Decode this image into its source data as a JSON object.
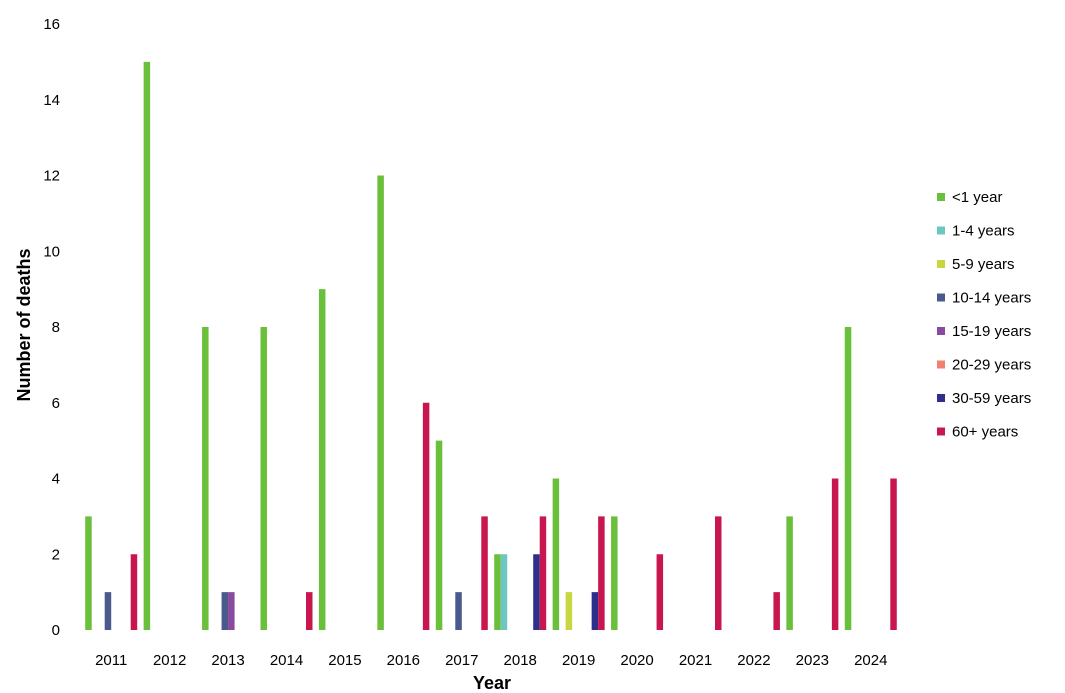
{
  "chart_data": {
    "type": "bar",
    "xlabel": "Year",
    "ylabel": "Number of deaths",
    "ylim": [
      0,
      16
    ],
    "yticks": [
      0,
      2,
      4,
      6,
      8,
      10,
      12,
      14,
      16
    ],
    "grid": false,
    "legend_position": "right",
    "categories": [
      "2011",
      "2012",
      "2013",
      "2014",
      "2015",
      "2016",
      "2017",
      "2018",
      "2019",
      "2020",
      "2021",
      "2022",
      "2023",
      "2024"
    ],
    "series": [
      {
        "name": "<1 year",
        "color": "#6abf3b",
        "values": [
          3,
          15,
          8,
          8,
          9,
          12,
          5,
          2,
          4,
          3,
          0,
          0,
          3,
          8
        ]
      },
      {
        "name": "1-4 years",
        "color": "#6ec6c0",
        "values": [
          0,
          0,
          0,
          0,
          0,
          0,
          0,
          2,
          0,
          0,
          0,
          0,
          0,
          0
        ]
      },
      {
        "name": "5-9 years",
        "color": "#c8d640",
        "values": [
          0,
          0,
          0,
          0,
          0,
          0,
          0,
          0,
          1,
          0,
          0,
          0,
          0,
          0
        ]
      },
      {
        "name": "10-14 years",
        "color": "#4a5a8c",
        "values": [
          1,
          0,
          1,
          0,
          0,
          0,
          1,
          0,
          0,
          0,
          0,
          0,
          0,
          0
        ]
      },
      {
        "name": "15-19 years",
        "color": "#8a4a9e",
        "values": [
          0,
          0,
          1,
          0,
          0,
          0,
          0,
          0,
          0,
          0,
          0,
          0,
          0,
          0
        ]
      },
      {
        "name": "20-29 years",
        "color": "#f08070",
        "values": [
          0,
          0,
          0,
          0,
          0,
          0,
          0,
          0,
          0,
          0,
          0,
          0,
          0,
          0
        ]
      },
      {
        "name": "30-59 years",
        "color": "#2e2e8c",
        "values": [
          0,
          0,
          0,
          0,
          0,
          0,
          0,
          2,
          1,
          0,
          0,
          0,
          0,
          0
        ]
      },
      {
        "name": "60+ years",
        "color": "#c8174f",
        "values": [
          2,
          0,
          0,
          1,
          0,
          6,
          3,
          3,
          3,
          2,
          3,
          1,
          4,
          4
        ]
      }
    ]
  }
}
